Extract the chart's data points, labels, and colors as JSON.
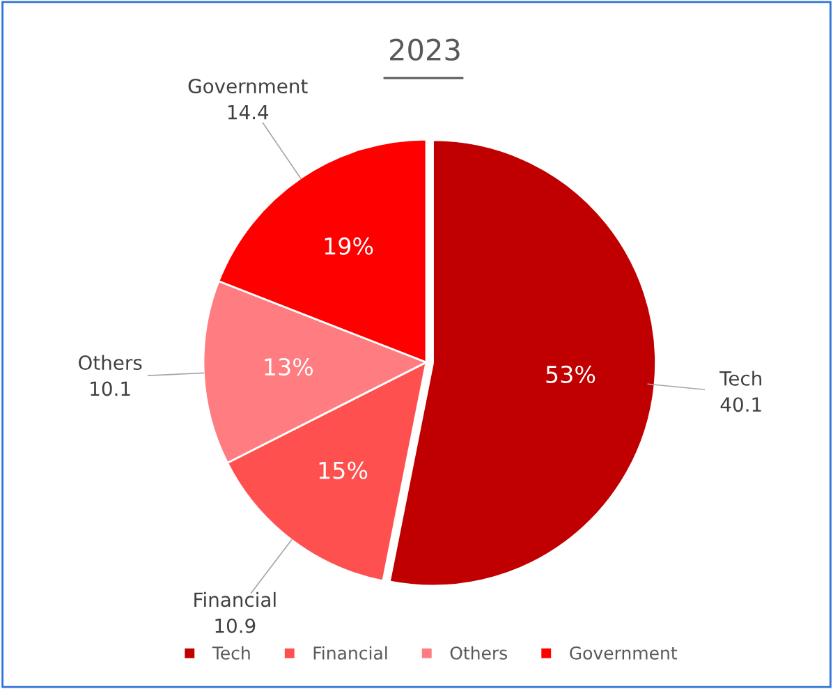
{
  "chart_data": {
    "type": "pie",
    "title": "2023",
    "categories": [
      "Tech",
      "Financial",
      "Others",
      "Government"
    ],
    "values": [
      40.1,
      10.9,
      10.1,
      14.4
    ],
    "colors": [
      "#c00000",
      "#ff5050",
      "#ff7c80",
      "#ff0000"
    ],
    "annotations": [
      "53%",
      "15%",
      "13%",
      "19%"
    ],
    "data_labels": true,
    "legend": "bottom"
  }
}
